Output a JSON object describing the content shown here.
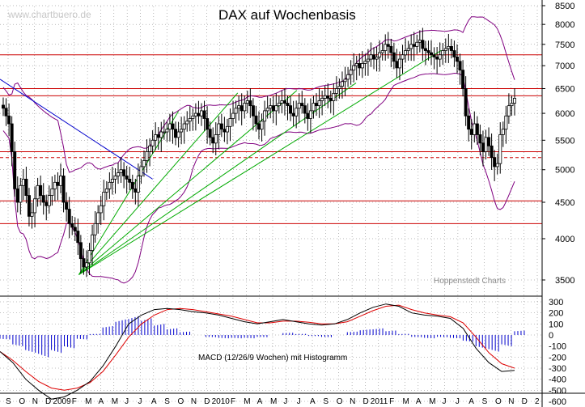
{
  "header": {
    "title": "DAX auf Wochenbasis",
    "watermark": "www.chartbuero.de",
    "source": "Hoppenstedt Charts"
  },
  "macd": {
    "label": "MACD (12/26/9 Wochen) mit Histogramm"
  },
  "colors": {
    "candle": "#000000",
    "bollinger": "#800080",
    "horizontal_levels": "#cc0000",
    "downtrend": "#0000cc",
    "uptrend_fan": "#00aa00",
    "grid": "#000000",
    "histogram": "#0000cc",
    "macd_line": "#000000",
    "signal_line": "#dd0000"
  },
  "chart_data": [
    {
      "type": "candlestick",
      "title": "DAX auf Wochenbasis",
      "y_scale": "log",
      "ylim": [
        3400,
        8700
      ],
      "y_ticks": [
        3500,
        4000,
        4500,
        5000,
        5500,
        6000,
        6500,
        7000,
        7500,
        8000,
        8500
      ],
      "grid": "dotted vertical and horizontal",
      "x_tick_labels": [
        "S",
        "O",
        "N",
        "D",
        "2009",
        "F",
        "M",
        "A",
        "M",
        "J",
        "J",
        "A",
        "S",
        "O",
        "N",
        "D",
        "2010",
        "F",
        "M",
        "A",
        "M",
        "J",
        "J",
        "A",
        "S",
        "O",
        "N",
        "D",
        "2011",
        "F",
        "M",
        "A",
        "M",
        "J",
        "J",
        "A",
        "S",
        "O",
        "N",
        "D",
        "2"
      ],
      "horizontal_levels": [
        {
          "value": 7250,
          "style": "solid"
        },
        {
          "value": 6500,
          "style": "solid"
        },
        {
          "value": 6350,
          "style": "solid"
        },
        {
          "value": 5300,
          "style": "solid"
        },
        {
          "value": 5200,
          "style": "dashed"
        },
        {
          "value": 4520,
          "style": "solid"
        },
        {
          "value": 4200,
          "style": "solid"
        }
      ],
      "closes": [
        6100,
        5950,
        5800,
        5300,
        4700,
        4500,
        4750,
        4850,
        4600,
        4300,
        4350,
        4550,
        4750,
        4600,
        4500,
        4450,
        4600,
        4700,
        4800,
        4750,
        4900,
        4500,
        4400,
        4200,
        4150,
        4100,
        3950,
        3750,
        3650,
        3700,
        3850,
        4050,
        4200,
        4350,
        4450,
        4650,
        4700,
        4800,
        4850,
        4900,
        4950,
        5000,
        4900,
        4850,
        4800,
        4700,
        4650,
        4900,
        5050,
        5150,
        5300,
        5400,
        5500,
        5600,
        5550,
        5650,
        5650,
        5700,
        5800,
        5700,
        5550,
        5650,
        5700,
        5800,
        5850,
        5900,
        5950,
        6000,
        5950,
        6050,
        5900,
        5700,
        5550,
        5450,
        5600,
        5800,
        5700,
        5650,
        5750,
        5900,
        6000,
        6100,
        6150,
        6050,
        6200,
        6250,
        6150,
        5950,
        5800,
        5700,
        5850,
        6050,
        6100,
        6150,
        6050,
        6150,
        6200,
        6250,
        6200,
        6150,
        6000,
        5950,
        6100,
        6200,
        6150,
        6000,
        5900,
        6050,
        6200,
        6150,
        6250,
        6300,
        6350,
        6300,
        6250,
        6400,
        6500,
        6550,
        6650,
        6700,
        6800,
        6900,
        7000,
        7050,
        6950,
        7050,
        7100,
        7150,
        7250,
        7150,
        7200,
        7300,
        7350,
        7500,
        7450,
        7300,
        7100,
        6950,
        7150,
        7250,
        7350,
        7400,
        7500,
        7450,
        7550,
        7600,
        7400,
        7350,
        7300,
        7250,
        7200,
        7150,
        7250,
        7350,
        7400,
        7450,
        7350,
        7200,
        7100,
        6900,
        6500,
        5950,
        5700,
        5600,
        5800,
        5600,
        5450,
        5300,
        5550,
        5400,
        5200,
        5050,
        5100,
        5600,
        5700,
        5950,
        6150,
        6200,
        6300
      ]
    },
    {
      "type": "line",
      "label": "MACD (12/26/9 Wochen) mit Histogramm",
      "ylim": [
        -600,
        300
      ],
      "y_ticks": [
        300,
        200,
        100,
        0,
        -100,
        -200,
        -300,
        -400,
        -500,
        -600
      ],
      "series": [
        {
          "name": "MACD",
          "values": [
            -150,
            -250,
            -400,
            -500,
            -580,
            -560,
            -500,
            -420,
            -280,
            -100,
            100,
            180,
            230,
            240,
            230,
            210,
            200,
            180,
            150,
            120,
            100,
            120,
            140,
            120,
            100,
            90,
            100,
            140,
            200,
            250,
            280,
            260,
            200,
            180,
            170,
            150,
            60,
            -120,
            -250,
            -330,
            -320
          ]
        },
        {
          "name": "Signal",
          "values": [
            -150,
            -230,
            -330,
            -420,
            -480,
            -500,
            -480,
            -430,
            -330,
            -180,
            -20,
            100,
            180,
            230,
            240,
            230,
            210,
            190,
            170,
            140,
            110,
            110,
            125,
            125,
            115,
            100,
            100,
            120,
            170,
            220,
            260,
            270,
            230,
            200,
            180,
            165,
            110,
            -20,
            -160,
            -260,
            -300
          ]
        },
        {
          "name": "Histogramm",
          "values": [
            -40,
            -100,
            -160,
            -200,
            -160,
            -120,
            -40,
            10,
            80,
            140,
            170,
            150,
            100,
            60,
            30,
            0,
            -20,
            -30,
            -30,
            -30,
            -20,
            0,
            20,
            10,
            -10,
            -20,
            0,
            30,
            50,
            60,
            40,
            10,
            -20,
            -30,
            -20,
            -30,
            -60,
            -120,
            -150,
            -100,
            40
          ]
        }
      ]
    }
  ]
}
